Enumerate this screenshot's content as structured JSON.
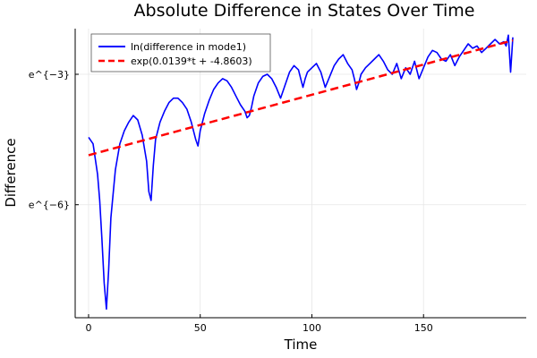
{
  "chart_data": {
    "type": "line",
    "title": "Absolute Difference in States Over Time",
    "xlabel": "Time",
    "ylabel": "Difference",
    "xlim": [
      -6,
      196
    ],
    "ylim": [
      -8.6,
      -1.95
    ],
    "y_scale": "natural log",
    "grid": true,
    "legend_position": "top-left",
    "x_ticks": [
      {
        "value": 0,
        "label": "0"
      },
      {
        "value": 50,
        "label": "50"
      },
      {
        "value": 100,
        "label": "100"
      },
      {
        "value": 150,
        "label": "150"
      }
    ],
    "y_ticks": [
      {
        "value": -3,
        "label": "e^{−3}"
      },
      {
        "value": -6,
        "label": "e^{−6}"
      }
    ],
    "series": [
      {
        "name": "ln(difference in mode1)",
        "color": "#0000ff",
        "style": "solid",
        "x": [
          0,
          2,
          4,
          5,
          6,
          7,
          8,
          9,
          10,
          12,
          14,
          16,
          18,
          20,
          22,
          24,
          26,
          27,
          28,
          29,
          30,
          32,
          34,
          36,
          38,
          40,
          42,
          44,
          46,
          48,
          49,
          50,
          52,
          54,
          56,
          58,
          60,
          62,
          64,
          66,
          68,
          70,
          71,
          72,
          73,
          74,
          76,
          78,
          80,
          82,
          84,
          86,
          88,
          90,
          92,
          94,
          95,
          96,
          97,
          98,
          100,
          102,
          104,
          106,
          108,
          110,
          112,
          114,
          116,
          118,
          119,
          120,
          121,
          122,
          124,
          126,
          128,
          130,
          132,
          134,
          136,
          138,
          140,
          142,
          144,
          146,
          148,
          150,
          152,
          154,
          156,
          158,
          160,
          162,
          164,
          166,
          168,
          170,
          172,
          174,
          176,
          178,
          180,
          182,
          184,
          186,
          187,
          188,
          189,
          190
        ],
        "y": [
          -4.45,
          -4.6,
          -5.3,
          -5.9,
          -6.8,
          -7.8,
          -8.4,
          -7.5,
          -6.3,
          -5.2,
          -4.6,
          -4.3,
          -4.1,
          -3.95,
          -4.05,
          -4.4,
          -5.0,
          -5.7,
          -5.9,
          -5.1,
          -4.5,
          -4.1,
          -3.85,
          -3.65,
          -3.55,
          -3.55,
          -3.65,
          -3.8,
          -4.1,
          -4.5,
          -4.65,
          -4.3,
          -3.9,
          -3.6,
          -3.35,
          -3.2,
          -3.1,
          -3.15,
          -3.3,
          -3.5,
          -3.7,
          -3.85,
          -4.0,
          -3.95,
          -3.75,
          -3.5,
          -3.2,
          -3.05,
          -3.0,
          -3.1,
          -3.3,
          -3.55,
          -3.25,
          -2.95,
          -2.8,
          -2.9,
          -3.1,
          -3.3,
          -3.1,
          -2.95,
          -2.85,
          -2.75,
          -2.95,
          -3.3,
          -3.05,
          -2.8,
          -2.65,
          -2.55,
          -2.75,
          -2.9,
          -3.1,
          -3.35,
          -3.2,
          -3.0,
          -2.85,
          -2.75,
          -2.65,
          -2.55,
          -2.7,
          -2.9,
          -3.0,
          -2.75,
          -3.1,
          -2.85,
          -3.0,
          -2.7,
          -3.1,
          -2.85,
          -2.6,
          -2.45,
          -2.5,
          -2.65,
          -2.7,
          -2.55,
          -2.8,
          -2.6,
          -2.45,
          -2.3,
          -2.4,
          -2.35,
          -2.5,
          -2.4,
          -2.3,
          -2.2,
          -2.3,
          -2.25,
          -2.35,
          -2.1,
          -2.95,
          -2.15
        ]
      },
      {
        "name": "exp(0.0139*t + -4.8603)",
        "color": "#ff0000",
        "style": "dashed",
        "x": [
          0,
          190
        ],
        "y": [
          -4.8603,
          -2.2193
        ]
      }
    ]
  }
}
